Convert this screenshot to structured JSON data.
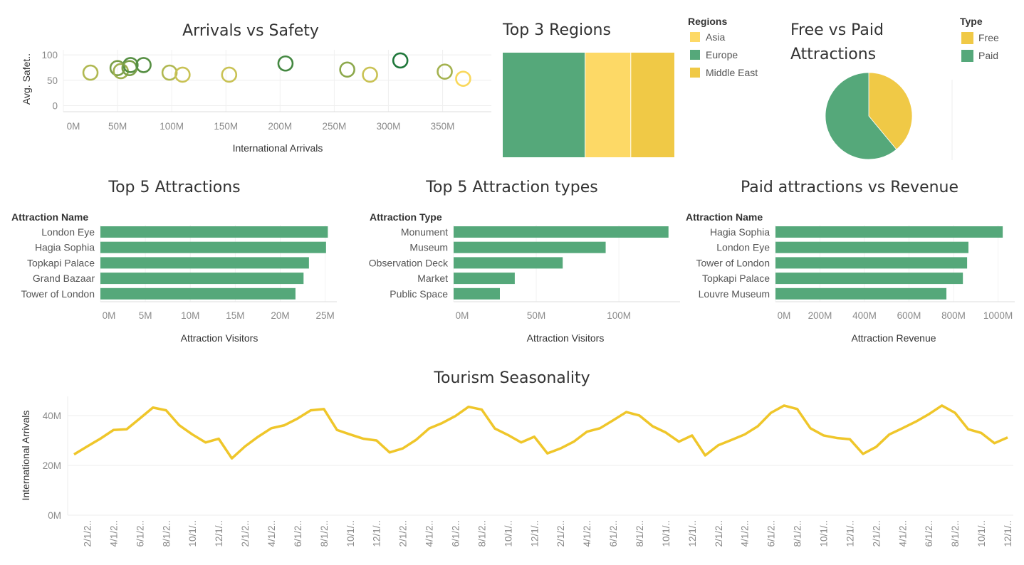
{
  "colors": {
    "green": "#55a87a",
    "yellow": "#f0c946",
    "light_yellow": "#fdd966",
    "line": "#efc62a",
    "scatter_low": "#f9d85c",
    "scatter_high": "#1f773a"
  },
  "chart_data": [
    {
      "id": "scatter",
      "type": "scatter",
      "title": "Arrivals vs Safety",
      "xlabel": "International Arrivals",
      "ylabel": "Avg. Safet..",
      "xticks": [
        {
          "value": 0,
          "label": "0M"
        },
        {
          "value": 50,
          "label": "50M"
        },
        {
          "value": 100,
          "label": "100M"
        },
        {
          "value": 150,
          "label": "150M"
        },
        {
          "value": 200,
          "label": "200M"
        },
        {
          "value": 250,
          "label": "250M"
        },
        {
          "value": 300,
          "label": "300M"
        },
        {
          "value": 350,
          "label": "350M"
        }
      ],
      "yticks": [
        {
          "value": 0,
          "label": "0"
        },
        {
          "value": 50,
          "label": "50"
        },
        {
          "value": 100,
          "label": "100"
        }
      ],
      "xlim": [
        0,
        395
      ],
      "ylim": [
        -12,
        110
      ],
      "points": [
        {
          "x": 25,
          "y": 65
        },
        {
          "x": 50,
          "y": 74
        },
        {
          "x": 53,
          "y": 68
        },
        {
          "x": 62,
          "y": 80
        },
        {
          "x": 61,
          "y": 74
        },
        {
          "x": 74,
          "y": 80
        },
        {
          "x": 98,
          "y": 65
        },
        {
          "x": 110,
          "y": 61
        },
        {
          "x": 153,
          "y": 61
        },
        {
          "x": 205,
          "y": 83
        },
        {
          "x": 262,
          "y": 71
        },
        {
          "x": 283,
          "y": 61
        },
        {
          "x": 311,
          "y": 89
        },
        {
          "x": 352,
          "y": 67
        },
        {
          "x": 369,
          "y": 53
        }
      ]
    },
    {
      "id": "regions",
      "type": "bar",
      "stacked_percent": true,
      "title": "Top 3 Regions",
      "legend_title": "Regions",
      "legend": [
        {
          "name": "Asia",
          "color": "#fdd966"
        },
        {
          "name": "Europe",
          "color": "#55a87a"
        },
        {
          "name": "Middle East",
          "color": "#f0c946"
        }
      ],
      "segments": [
        {
          "name": "Europe",
          "value": 48,
          "color": "#55a87a"
        },
        {
          "name": "Asia",
          "value": 26.5,
          "color": "#fdd966"
        },
        {
          "name": "Middle East",
          "value": 25.5,
          "color": "#f0c946"
        }
      ]
    },
    {
      "id": "pie",
      "type": "pie",
      "title_lines": [
        "Free vs Paid",
        "Attractions"
      ],
      "legend_title": "Type",
      "slices": [
        {
          "name": "Free",
          "value": 39,
          "color": "#f0c946"
        },
        {
          "name": "Paid",
          "value": 61,
          "color": "#55a87a"
        }
      ]
    },
    {
      "id": "top5",
      "type": "bar",
      "title": "Top 5 Attractions",
      "header": "Attraction Name",
      "xlabel": "Attraction Visitors",
      "categories": [
        "London Eye",
        "Hagia Sophia",
        "Topkapi Palace",
        "Grand Bazaar",
        "Tower of London"
      ],
      "values": [
        25.3,
        25.1,
        23.2,
        22.6,
        21.7
      ],
      "xticks": [
        {
          "value": 0,
          "label": "0M"
        },
        {
          "value": 5,
          "label": "5M"
        },
        {
          "value": 10,
          "label": "10M"
        },
        {
          "value": 15,
          "label": "15M"
        },
        {
          "value": 20,
          "label": "20M"
        },
        {
          "value": 25,
          "label": "25M"
        }
      ],
      "xlim": [
        0,
        26.3
      ]
    },
    {
      "id": "types",
      "type": "bar",
      "title": "Top 5 Attraction types",
      "header": "Attraction Type",
      "xlabel": "Attraction Visitors",
      "categories": [
        "Monument",
        "Museum",
        "Observation Deck",
        "Market",
        "Public Space"
      ],
      "values": [
        130,
        92,
        66,
        37,
        28
      ],
      "xticks": [
        {
          "value": 0,
          "label": "0M"
        },
        {
          "value": 50,
          "label": "50M"
        },
        {
          "value": 100,
          "label": "100M"
        }
      ],
      "xlim": [
        0,
        137
      ]
    },
    {
      "id": "revenue",
      "type": "bar",
      "title": "Paid attractions vs Revenue",
      "header": "Attraction Name",
      "xlabel": "Attraction Revenue",
      "categories": [
        "Hagia Sophia",
        "London Eye",
        "Tower of London",
        "Topkapi Palace",
        "Louvre Museum"
      ],
      "values": [
        1021,
        867,
        861,
        842,
        768
      ],
      "xticks": [
        {
          "value": 0,
          "label": "0M"
        },
        {
          "value": 200,
          "label": "200M"
        },
        {
          "value": 400,
          "label": "400M"
        },
        {
          "value": 600,
          "label": "600M"
        },
        {
          "value": 800,
          "label": "800M"
        },
        {
          "value": 1000,
          "label": "1000M"
        }
      ],
      "xlim": [
        0,
        1075
      ]
    },
    {
      "id": "season",
      "type": "line",
      "title": "Tourism Seasonality",
      "ylabel": "International Arrivals",
      "yticks": [
        {
          "value": 0,
          "label": "0M"
        },
        {
          "value": 20,
          "label": "20M"
        },
        {
          "value": 40,
          "label": "40M"
        }
      ],
      "ylim": [
        0,
        47.7
      ],
      "xtick_labels": [
        "2/1/2..",
        "4/1/2..",
        "6/1/2..",
        "8/1/2..",
        "10/1/..",
        "12/1/..",
        "2/1/2..",
        "4/1/2..",
        "6/1/2..",
        "8/1/2..",
        "10/1/..",
        "12/1/..",
        "2/1/2..",
        "4/1/2..",
        "6/1/2..",
        "8/1/2..",
        "10/1/..",
        "12/1/..",
        "2/1/2..",
        "4/1/2..",
        "6/1/2..",
        "8/1/2..",
        "10/1/..",
        "12/1/..",
        "2/1/2..",
        "4/1/2..",
        "6/1/2..",
        "8/1/2..",
        "10/1/..",
        "12/1/..",
        "2/1/2..",
        "4/1/2..",
        "6/1/2..",
        "8/1/2..",
        "10/1/..",
        "12/1/.."
      ],
      "values": [
        24.4,
        27.6,
        30.7,
        34.2,
        34.5,
        38.8,
        43.2,
        42.1,
        36.1,
        32.4,
        29.2,
        30.7,
        22.8,
        27.6,
        31.5,
        34.9,
        36.1,
        38.8,
        42.1,
        42.6,
        34.2,
        32.4,
        30.7,
        30,
        25.2,
        26.8,
        30.2,
        34.8,
        37,
        39.8,
        43.5,
        42.4,
        34.8,
        32.2,
        29.2,
        31.5,
        24.8,
        26.8,
        29.5,
        33.5,
        34.9,
        38.1,
        41.4,
        40,
        35.7,
        33.2,
        29.5,
        32,
        24,
        28.1,
        30.2,
        32.4,
        35.7,
        41.1,
        44,
        42.6,
        34.9,
        32,
        31,
        30.5,
        24.6,
        27.4,
        32.4,
        34.9,
        37.5,
        40.5,
        44,
        41.1,
        34.5,
        33,
        28.9,
        31.2
      ]
    }
  ]
}
